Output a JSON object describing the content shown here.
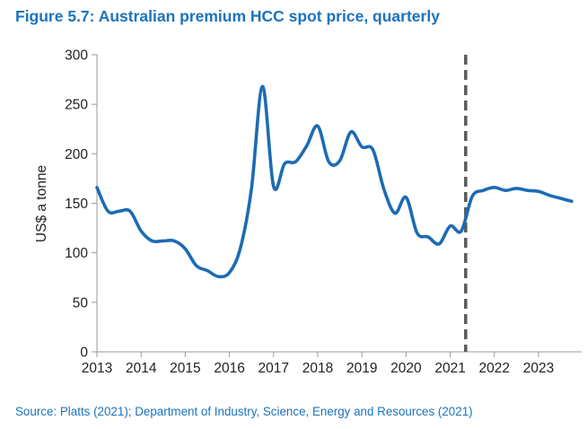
{
  "figure": {
    "title": "Figure 5.7: Australian premium HCC spot price, quarterly",
    "source": "Source: Platts (2021); Department of Industry, Science, Energy and Resources (2021)"
  },
  "chart_data": {
    "type": "line",
    "title": "Figure 5.7: Australian premium HCC spot price, quarterly",
    "xlabel": "",
    "ylabel": "US$ a tonne",
    "xlim": [
      2013,
      2023.85
    ],
    "ylim": [
      0,
      300
    ],
    "y_ticks": [
      0,
      50,
      100,
      150,
      200,
      250,
      300
    ],
    "x_ticks": [
      2013,
      2014,
      2015,
      2016,
      2017,
      2018,
      2019,
      2020,
      2021,
      2022,
      2023
    ],
    "grid": false,
    "forecast_divider": {
      "x": 2021.35,
      "style": "dashed",
      "color": "#595959"
    },
    "series": [
      {
        "name": "Australian premium HCC spot price",
        "color": "#1C6BB5",
        "points": [
          [
            2013.0,
            166
          ],
          [
            2013.25,
            142
          ],
          [
            2013.5,
            142
          ],
          [
            2013.75,
            142
          ],
          [
            2014.0,
            122
          ],
          [
            2014.25,
            112
          ],
          [
            2014.5,
            112
          ],
          [
            2014.75,
            112
          ],
          [
            2015.0,
            104
          ],
          [
            2015.25,
            87
          ],
          [
            2015.5,
            82
          ],
          [
            2015.75,
            76
          ],
          [
            2016.0,
            80
          ],
          [
            2016.25,
            105
          ],
          [
            2016.5,
            165
          ],
          [
            2016.75,
            268
          ],
          [
            2017.0,
            167
          ],
          [
            2017.25,
            190
          ],
          [
            2017.5,
            192
          ],
          [
            2017.75,
            208
          ],
          [
            2018.0,
            228
          ],
          [
            2018.25,
            192
          ],
          [
            2018.5,
            193
          ],
          [
            2018.75,
            222
          ],
          [
            2019.0,
            207
          ],
          [
            2019.25,
            204
          ],
          [
            2019.5,
            164
          ],
          [
            2019.75,
            140
          ],
          [
            2020.0,
            156
          ],
          [
            2020.25,
            120
          ],
          [
            2020.5,
            116
          ],
          [
            2020.75,
            109
          ],
          [
            2021.0,
            127
          ],
          [
            2021.25,
            122
          ],
          [
            2021.5,
            157
          ],
          [
            2021.75,
            163
          ],
          [
            2022.0,
            166
          ],
          [
            2022.25,
            163
          ],
          [
            2022.5,
            165
          ],
          [
            2022.75,
            163
          ],
          [
            2023.0,
            162
          ],
          [
            2023.25,
            158
          ],
          [
            2023.5,
            155
          ],
          [
            2023.75,
            152
          ]
        ]
      }
    ]
  }
}
